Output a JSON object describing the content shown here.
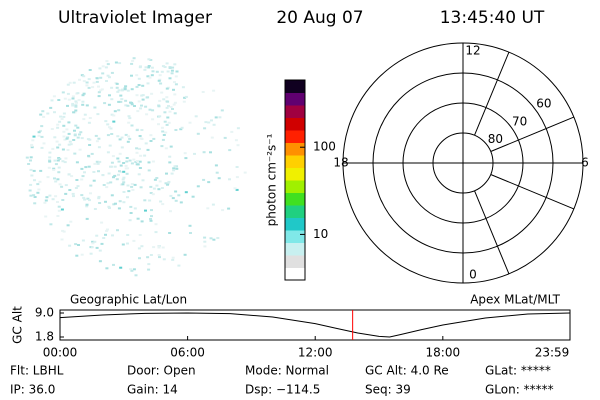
{
  "header": {
    "title": "Ultraviolet Imager",
    "date": "20 Aug 07",
    "time": "13:45:40 UT"
  },
  "colorbar": {
    "label": "photon cm⁻²s⁻¹",
    "log": true,
    "lim": [
      3,
      590
    ],
    "ticks": [
      10,
      100
    ],
    "colors": [
      "#ffffff",
      "#e0e0e0",
      "#c8f0f0",
      "#80e8e8",
      "#20c8c8",
      "#20d080",
      "#40e020",
      "#a0f000",
      "#f0f000",
      "#ffd000",
      "#ff9000",
      "#ff2000",
      "#d00000",
      "#a00040",
      "#600070",
      "#100020"
    ]
  },
  "polar": {
    "rlim": [
      90,
      50
    ],
    "rticks": [
      60,
      70,
      80
    ],
    "hour_ticks": [
      12,
      18,
      6,
      0
    ]
  },
  "chart_data": {
    "type": "line",
    "ylabel": "GC Alt",
    "left_label": "Geographic Lat/Lon",
    "right_label": "Apex MLat/MLT",
    "xlim": [
      0,
      23.98
    ],
    "ylim": [
      0.9,
      9.9
    ],
    "xticks": [
      {
        "value": 0,
        "label": "00:00"
      },
      {
        "value": 6,
        "label": "06:00"
      },
      {
        "value": 12,
        "label": "12:00"
      },
      {
        "value": 18,
        "label": "18:00"
      },
      {
        "value": 23.98,
        "label": "23:59"
      }
    ],
    "yticks": [
      {
        "value": 1.8,
        "label": "1.8"
      },
      {
        "value": 9,
        "label": "9.0"
      }
    ],
    "x": [
      0,
      2,
      4,
      6,
      8,
      10,
      12,
      13,
      14,
      15,
      15.5,
      16,
      17,
      18,
      20,
      22,
      23.98
    ],
    "series": [
      {
        "color": "#000000",
        "values": [
          7.6,
          8.4,
          8.9,
          9.0,
          8.8,
          7.8,
          5.8,
          4.4,
          3.0,
          2.0,
          1.8,
          2.5,
          4.0,
          5.4,
          7.5,
          8.7,
          9.0
        ]
      }
    ],
    "marker_x": 13.76,
    "marker_color": "#ff0000"
  },
  "footer": {
    "rows": [
      [
        "Flt: LBHL",
        "Door: Open",
        "Mode: Normal",
        "GC Alt: 4.0 Re",
        "GLat: *****"
      ],
      [
        "IP: 36.0",
        "Gain: 14",
        "Dsp: −114.5",
        "Seq: 39",
        "GLon: *****"
      ]
    ]
  }
}
